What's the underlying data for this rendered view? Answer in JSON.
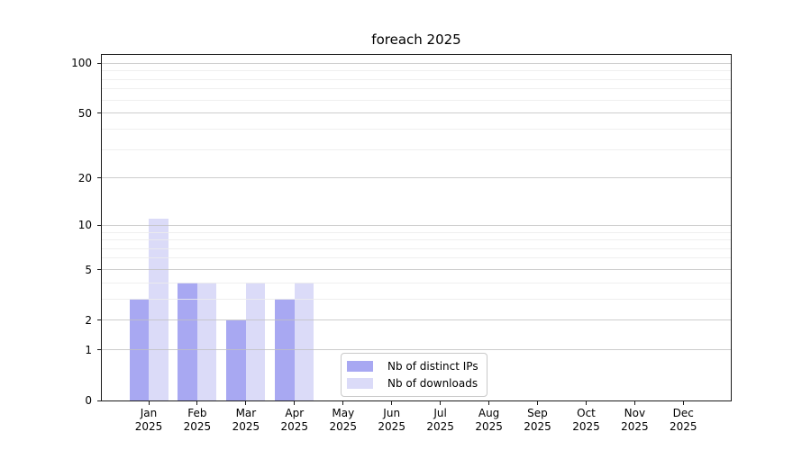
{
  "title": "foreach 2025",
  "chart_data": {
    "type": "bar",
    "title": "foreach 2025",
    "categories": [
      "Jan",
      "Feb",
      "Mar",
      "Apr",
      "May",
      "Jun",
      "Jul",
      "Aug",
      "Sep",
      "Oct",
      "Nov",
      "Dec"
    ],
    "category_year": "2025",
    "series": [
      {
        "name": "Nb of distinct IPs",
        "color": "#a8a8f2",
        "values": [
          3,
          4,
          2,
          3,
          0,
          0,
          0,
          0,
          0,
          0,
          0,
          0
        ]
      },
      {
        "name": "Nb of downloads",
        "color": "#dbdbf8",
        "values": [
          11,
          4,
          4,
          4,
          0,
          0,
          0,
          0,
          0,
          0,
          0,
          0
        ]
      }
    ],
    "xlabel": "",
    "ylabel": "",
    "yscale": "log1p",
    "ylim": [
      0,
      112
    ],
    "y_major_ticks": [
      0,
      1,
      2,
      5,
      10,
      20,
      50,
      100
    ],
    "y_minor_ticks": [
      3,
      4,
      6,
      7,
      8,
      9,
      30,
      40,
      60,
      70,
      80,
      90
    ],
    "grid": true,
    "legend_position": "lower-center"
  }
}
